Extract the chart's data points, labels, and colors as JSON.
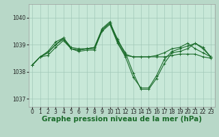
{
  "bg_color": "#b8d8c8",
  "plot_bg_color": "#c8e8d8",
  "grid_color": "#a0c8b8",
  "line_color": "#1a6b2a",
  "marker": "+",
  "xlabel": "Graphe pression niveau de la mer (hPa)",
  "xlabel_fontsize": 7.5,
  "tick_fontsize": 5.5,
  "ylim": [
    1036.7,
    1040.5
  ],
  "yticks": [
    1037,
    1038,
    1039,
    1040
  ],
  "xlim": [
    -0.5,
    23.5
  ],
  "xticks": [
    0,
    1,
    2,
    3,
    4,
    5,
    6,
    7,
    8,
    9,
    10,
    11,
    12,
    13,
    14,
    15,
    16,
    17,
    18,
    19,
    20,
    21,
    22,
    23
  ],
  "series": [
    [
      1038.25,
      1038.55,
      1038.6,
      1038.9,
      1039.15,
      1038.85,
      1038.75,
      1038.8,
      1038.8,
      1039.55,
      1039.8,
      1039.2,
      1038.65,
      1038.55,
      1038.55,
      1038.55,
      1038.55,
      1038.55,
      1038.6,
      1038.65,
      1038.65,
      1038.65,
      1038.55,
      1038.5
    ],
    [
      1038.25,
      1038.55,
      1038.75,
      1039.1,
      1039.25,
      1038.85,
      1038.8,
      1038.85,
      1038.9,
      1039.55,
      1039.8,
      1039.1,
      1038.6,
      1038.55,
      1038.55,
      1038.55,
      1038.6,
      1038.7,
      1038.85,
      1038.9,
      1039.05,
      1038.85,
      1038.7,
      1038.55
    ],
    [
      1038.25,
      1038.55,
      1038.7,
      1039.0,
      1039.25,
      1038.9,
      1038.85,
      1038.85,
      1038.9,
      1039.6,
      1039.85,
      1039.15,
      1038.7,
      1037.95,
      1037.35,
      1037.35,
      1037.75,
      1038.3,
      1038.7,
      1038.75,
      1038.85,
      1039.05,
      1038.85,
      1038.55
    ],
    [
      1038.25,
      1038.55,
      1038.7,
      1039.0,
      1039.2,
      1038.85,
      1038.8,
      1038.85,
      1038.85,
      1039.5,
      1039.75,
      1039.05,
      1038.55,
      1037.8,
      1037.4,
      1037.4,
      1037.85,
      1038.45,
      1038.75,
      1038.85,
      1038.95,
      1039.05,
      1038.9,
      1038.55
    ]
  ]
}
